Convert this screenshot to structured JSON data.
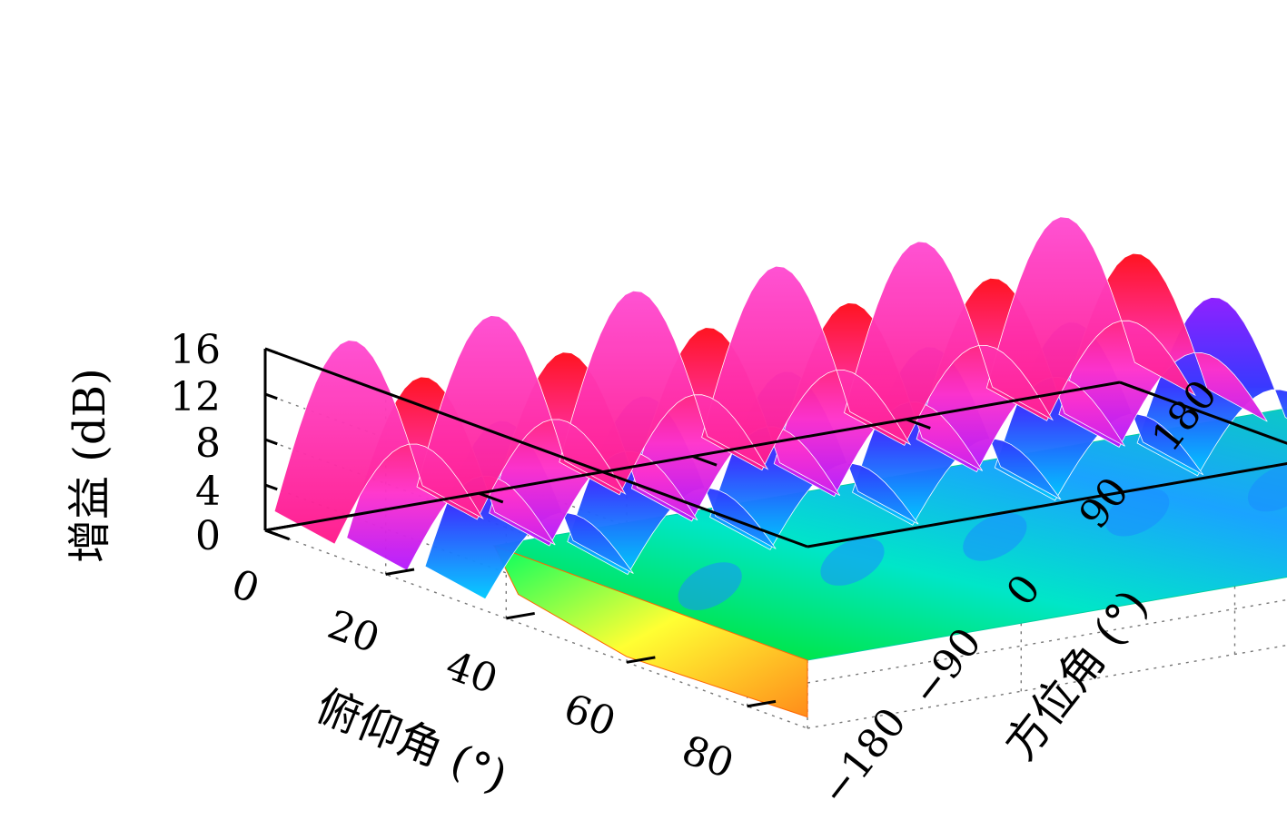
{
  "chart_data": {
    "type": "surface3d",
    "xlabel": "俯仰角 (°)",
    "ylabel": "方位角 (°)",
    "zlabel": "增益 (dB)",
    "x_ticks": [
      "0",
      "20",
      "40",
      "60",
      "80"
    ],
    "y_ticks": [
      "−180",
      "−90",
      "0",
      "90",
      "180"
    ],
    "z_ticks": [
      "0",
      "4",
      "8",
      "12",
      "16"
    ],
    "xlim": [
      0,
      90
    ],
    "ylim": [
      -180,
      180
    ],
    "zlim": [
      0,
      16
    ],
    "grid": true,
    "colormap": [
      "#ff0000",
      "#ffff00",
      "#00ff00",
      "#00ffff",
      "#0000ff",
      "#ff00ff"
    ],
    "ridges": [
      {
        "elevation": 6,
        "peak_gain": 15.5,
        "color": "#ff33cc"
      },
      {
        "elevation": 18,
        "peak_gain": 14.5,
        "color": "#ff1a33"
      },
      {
        "elevation": 31,
        "peak_gain": 13.0,
        "color": "#6a1aff"
      }
    ],
    "plateau_gain": 6,
    "azimuth_lobes": 6
  }
}
